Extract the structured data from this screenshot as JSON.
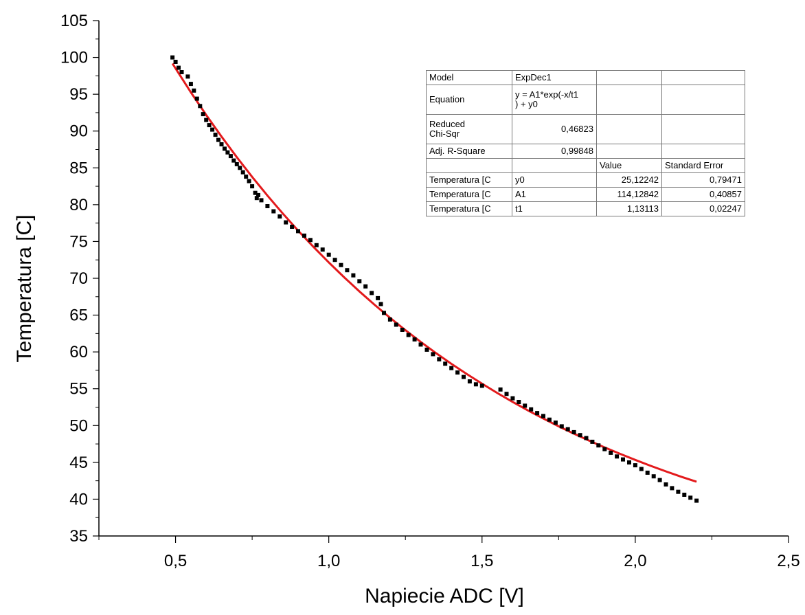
{
  "chart_data": {
    "type": "scatter",
    "xlabel": "Napiecie ADC [V]",
    "ylabel": "Temperatura [C]",
    "xlim": [
      0.25,
      2.5
    ],
    "ylim": [
      35,
      105
    ],
    "x_ticks": [
      "0,5",
      "1,0",
      "1,5",
      "2,0",
      "2,5"
    ],
    "y_ticks": [
      "35",
      "40",
      "45",
      "50",
      "55",
      "60",
      "65",
      "70",
      "75",
      "80",
      "85",
      "90",
      "95",
      "100",
      "105"
    ],
    "grid": false,
    "series": [
      {
        "marker": "square",
        "color": "#000000",
        "x": [
          0.49,
          0.5,
          0.51,
          0.52,
          0.54,
          0.55,
          0.56,
          0.57,
          0.58,
          0.59,
          0.6,
          0.61,
          0.62,
          0.63,
          0.64,
          0.65,
          0.66,
          0.67,
          0.68,
          0.69,
          0.7,
          0.71,
          0.72,
          0.73,
          0.74,
          0.75,
          0.76,
          0.765,
          0.77,
          0.78,
          0.8,
          0.82,
          0.84,
          0.86,
          0.88,
          0.9,
          0.92,
          0.94,
          0.96,
          0.98,
          1.0,
          1.02,
          1.04,
          1.06,
          1.08,
          1.1,
          1.12,
          1.14,
          1.16,
          1.17,
          1.18,
          1.2,
          1.22,
          1.24,
          1.26,
          1.28,
          1.3,
          1.32,
          1.34,
          1.36,
          1.38,
          1.4,
          1.42,
          1.44,
          1.46,
          1.48,
          1.5,
          1.56,
          1.58,
          1.6,
          1.62,
          1.64,
          1.66,
          1.68,
          1.7,
          1.72,
          1.74,
          1.76,
          1.78,
          1.8,
          1.82,
          1.84,
          1.86,
          1.88,
          1.9,
          1.92,
          1.94,
          1.96,
          1.98,
          2.0,
          2.02,
          2.04,
          2.06,
          2.08,
          2.1,
          2.12,
          2.14,
          2.16,
          2.18,
          2.2
        ],
        "y": [
          100,
          99.4,
          98.6,
          98,
          97.4,
          96.4,
          95.5,
          94.4,
          93.4,
          92.3,
          91.5,
          90.8,
          90.2,
          89.5,
          88.8,
          88.2,
          87.6,
          87.1,
          86.6,
          86,
          85.5,
          85,
          84.4,
          83.8,
          83.2,
          82.5,
          81.6,
          80.9,
          81.3,
          80.6,
          79.8,
          79.1,
          78.4,
          77.6,
          77,
          76.4,
          75.8,
          75.2,
          74.5,
          73.9,
          73.2,
          72.5,
          71.8,
          71.1,
          70.4,
          69.6,
          68.9,
          68,
          67.3,
          66.5,
          65.3,
          64.4,
          63.7,
          63,
          62.3,
          61.7,
          61,
          60.3,
          59.7,
          59,
          58.4,
          57.8,
          57.2,
          56.6,
          56,
          55.6,
          55.4,
          54.9,
          54.3,
          53.7,
          53.2,
          52.7,
          52.2,
          51.7,
          51.3,
          50.8,
          50.4,
          49.9,
          49.5,
          49.1,
          48.7,
          48.3,
          47.8,
          47.3,
          46.8,
          46.3,
          45.8,
          45.4,
          45,
          44.6,
          44.1,
          43.6,
          43.1,
          42.6,
          42,
          41.5,
          41,
          40.6,
          40.2,
          39.8
        ]
      },
      {
        "type": "line",
        "color": "#e31a1c",
        "x": [
          0.49,
          0.55,
          0.6,
          0.65,
          0.7,
          0.75,
          0.8,
          0.85,
          0.9,
          0.95,
          1.0,
          1.05,
          1.1,
          1.15,
          1.2,
          1.25,
          1.3,
          1.35,
          1.4,
          1.45,
          1.5,
          1.55,
          1.6,
          1.65,
          1.7,
          1.75,
          1.8,
          1.85,
          1.9,
          1.95,
          2.0,
          2.05,
          2.1,
          2.15,
          2.2
        ],
        "y": [
          99.17,
          95.26,
          92.18,
          89.25,
          86.45,
          83.78,
          81.23,
          78.8,
          76.48,
          74.27,
          72.16,
          70.14,
          68.22,
          66.38,
          64.63,
          62.95,
          61.36,
          59.84,
          58.38,
          57,
          55.68,
          54.41,
          53.21,
          52.05,
          50.95,
          49.9,
          48.9,
          47.94,
          47.03,
          46.16,
          45.33,
          44.53,
          43.77,
          43.05,
          42.36
        ]
      }
    ],
    "fit_table": {
      "rows": [
        [
          "Model",
          "ExpDec1",
          "",
          ""
        ],
        [
          "Equation",
          "y = A1*exp(-x/t1\n) + y0",
          "",
          ""
        ],
        [
          "Reduced\nChi-Sqr",
          "0,46823",
          "",
          ""
        ],
        [
          "Adj. R-Square",
          "0,99848",
          "",
          ""
        ],
        [
          "",
          "",
          "Value",
          "Standard Error"
        ],
        [
          "Temperatura [C",
          "y0",
          "25,12242",
          "0,79471"
        ],
        [
          "Temperatura [C",
          "A1",
          "114,12842",
          "0,40857"
        ],
        [
          "Temperatura [C",
          "t1",
          "1,13113",
          "0,02247"
        ]
      ]
    }
  }
}
